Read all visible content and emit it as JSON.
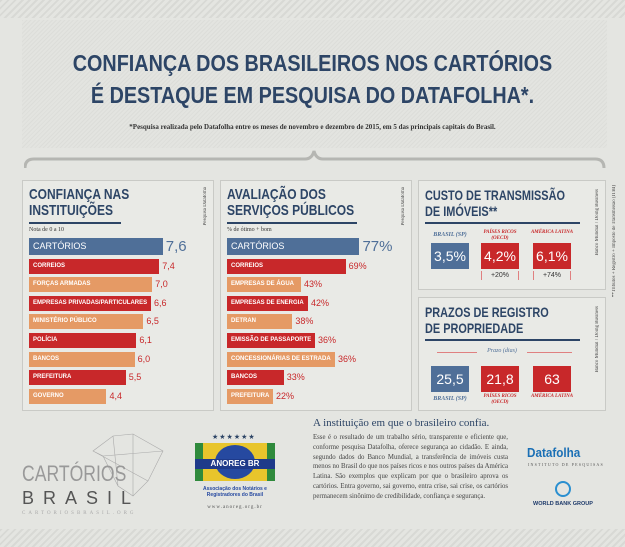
{
  "header": {
    "title_line1": "CONFIANÇA DOS BRASILEIROS NOS CARTÓRIOS",
    "title_line2": "É DESTAQUE EM PESQUISA DO DATAFOLHA*.",
    "note": "*Pesquisa realizada pelo Datafolha entre os meses de novembro e dezembro de 2015, em 5 das principais capitais do Brasil."
  },
  "colors": {
    "navy": "#2d4566",
    "blue": "#4f6f98",
    "red": "#c8282a",
    "orange": "#e59a65"
  },
  "chart_data": [
    {
      "type": "bar",
      "orientation": "horizontal",
      "title": "CONFIANÇA NAS INSTITUIÇÕES",
      "subtitle": "Nota de 0 a 10",
      "source": "Pesquisa Datafolha",
      "categories": [
        "CARTÓRIOS",
        "CORREIOS",
        "FORÇAS ARMADAS",
        "EMPRESAS PRIVADAS/PARTICULARES",
        "MINISTÉRIO PÚBLICO",
        "POLÍCIA",
        "BANCOS",
        "PREFEITURA",
        "GOVERNO"
      ],
      "values": [
        7.6,
        7.4,
        7.0,
        6.6,
        6.5,
        6.1,
        6.0,
        5.5,
        4.4
      ],
      "labels": [
        "7,6",
        "7,4",
        "7,0",
        "6,6",
        "6,5",
        "6,1",
        "6,0",
        "5,5",
        "4,4"
      ]
    },
    {
      "type": "bar",
      "orientation": "horizontal",
      "title": "AVALIAÇÃO DOS SERVIÇOS PÚBLICOS",
      "subtitle": "% de ótimo + bom",
      "source": "Pesquisa Datafolha",
      "categories": [
        "CARTÓRIOS",
        "CORREIOS",
        "EMPRESAS DE ÁGUA",
        "EMPRESAS DE ENERGIA",
        "DETRAN",
        "EMISSÃO DE PASSAPORTE",
        "CONCESSIONÁRIAS DE ESTRADA",
        "BANCOS",
        "PREFEITURA"
      ],
      "values": [
        77,
        69,
        43,
        42,
        38,
        36,
        36,
        33,
        22
      ],
      "labels": [
        "77%",
        "69%",
        "43%",
        "42%",
        "38%",
        "36%",
        "36%",
        "33%",
        "22%"
      ]
    },
    {
      "type": "table",
      "title": "CUSTO DE TRANSMISSÃO DE IMÓVEIS**",
      "source": "Banco Mundial / Doing Business",
      "footnote": "**Tributos + Registro + Imposto de Transmissão (ITBI)",
      "categories": [
        "BRASIL (SP)",
        "PAÍSES RICOS (OECD)",
        "AMÉRICA LATINA"
      ],
      "values": [
        3.5,
        4.2,
        6.1
      ],
      "labels": [
        "3,5%",
        "4,2%",
        "6,1%"
      ],
      "differences": [
        "",
        "+20%",
        "+74%"
      ]
    },
    {
      "type": "table",
      "title": "PRAZOS DE REGISTRO DE PROPRIEDADE",
      "subtitle": "Prazo (dias)",
      "source": "Banco Mundial / Doing Business",
      "categories": [
        "BRASIL (SP)",
        "PAÍSES RICOS (OECD)",
        "AMÉRICA LATINA"
      ],
      "values": [
        25.5,
        21.8,
        63
      ],
      "labels": [
        "25,5",
        "21,8",
        "63"
      ]
    }
  ],
  "intro": {
    "title": "A instituição em que o brasileiro confia.",
    "body": "Esse é o resultado de um trabalho sério, transparente e eficiente que, conforme pesquisa Datafolha, oferece segurança ao cidadão. E ainda, segundo dados do Banco Mundial, a transferência de imóveis custa menos no Brasil do que nos países ricos e nos outros países da América Latina. São exemplos que explicam por que o brasileiro aprova os cartórios. Entra governo, sai governo, entra crise, sai crise, os cartórios permanecem sinônimo de credibilidade, confiança e segurança."
  },
  "logos": {
    "cartorios": {
      "line1": "CARTÓRIOS",
      "line2": "BRASIL",
      "url": "CARTORIOSBRASIL.ORG"
    },
    "anoreg": {
      "name": "ANOREG BR",
      "full": "Associação dos Notários e Registradores do Brasil",
      "url": "www.anoreg.org.br"
    },
    "datafolha": {
      "name": "Datafolha",
      "tag": "INSTITUTO DE PESQUISAS"
    },
    "worldbank": "WORLD BANK GROUP"
  }
}
